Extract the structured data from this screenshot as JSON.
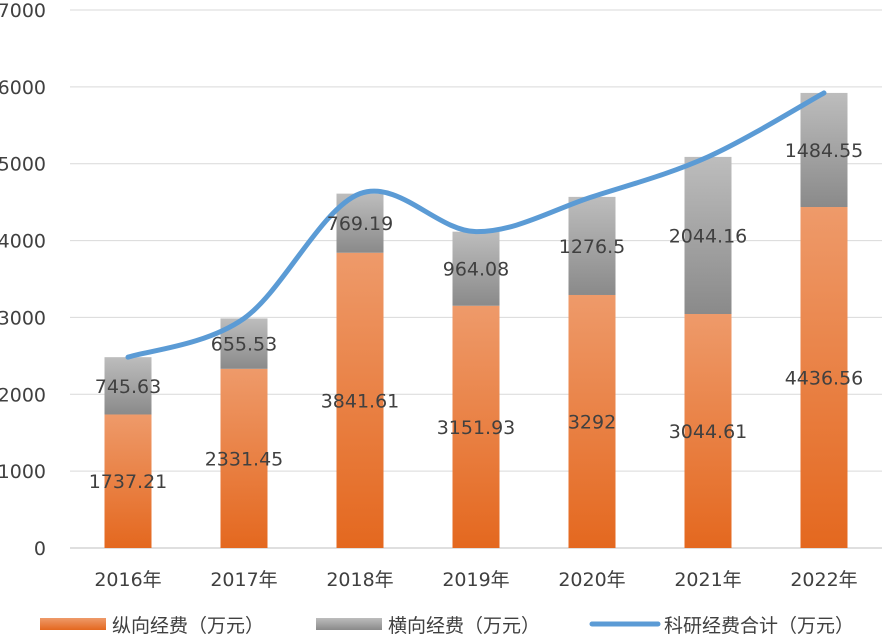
{
  "chart_data": {
    "type": "bar",
    "stacked": true,
    "title": "",
    "xlabel": "",
    "ylabel": "",
    "ylim": [
      0,
      7000
    ],
    "yticks": [
      0,
      1000,
      2000,
      3000,
      4000,
      5000,
      6000,
      7000
    ],
    "grid": true,
    "legend_position": "bottom",
    "categories": [
      "2016年",
      "2017年",
      "2018年",
      "2019年",
      "2020年",
      "2021年",
      "2022年"
    ],
    "series": [
      {
        "name": "纵向经费（万元）",
        "kind": "bar",
        "color": "#E8722E",
        "values": [
          1737.21,
          2331.45,
          3841.61,
          3151.93,
          3292,
          3044.61,
          4436.56
        ],
        "labels": [
          "1737.21",
          "2331.45",
          "3841.61",
          "3151.93",
          "3292",
          "3044.61",
          "4436.56"
        ]
      },
      {
        "name": "横向经费（万元）",
        "kind": "bar",
        "color": "#9E9E9E",
        "values": [
          745.63,
          655.53,
          769.19,
          964.08,
          1276.5,
          2044.16,
          1484.55
        ],
        "labels": [
          "745.63",
          "655.53",
          "769.19",
          "964.08",
          "1276.5",
          "2044.16",
          "1484.55"
        ]
      },
      {
        "name": "科研经费合计（万元）",
        "kind": "line",
        "color": "#5B9BD5",
        "values": [
          2482.84,
          2986.98,
          4610.8,
          4116.01,
          4568.5,
          5088.77,
          5921.11
        ]
      }
    ]
  }
}
